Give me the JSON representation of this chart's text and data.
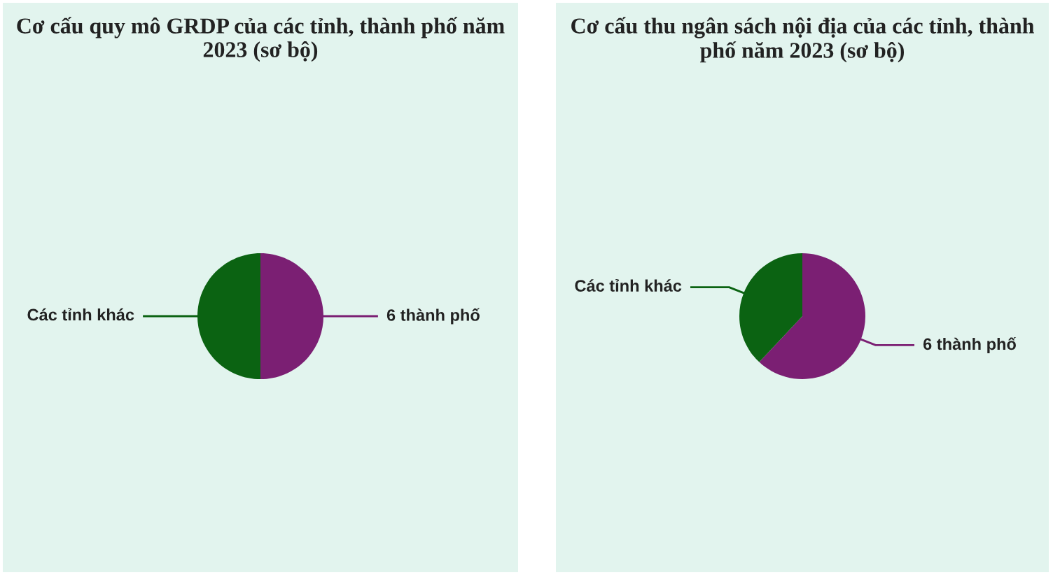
{
  "chart_data": [
    {
      "type": "pie",
      "title": "Cơ cấu quy mô GRDP của các tỉnh, thành phố năm 2023 (sơ bộ)",
      "categories": [
        "6 thành phố",
        "Các tỉnh khác"
      ],
      "values": [
        50,
        50
      ],
      "colors": [
        "#7b1f73",
        "#0b6312"
      ]
    },
    {
      "type": "pie",
      "title": "Cơ cấu thu ngân sách nội địa của các tỉnh, thành phố năm 2023 (sơ bộ)",
      "categories": [
        "6 thành phố",
        "Các tỉnh khác"
      ],
      "values": [
        62,
        38
      ],
      "colors": [
        "#7b1f73",
        "#0b6312"
      ]
    }
  ]
}
